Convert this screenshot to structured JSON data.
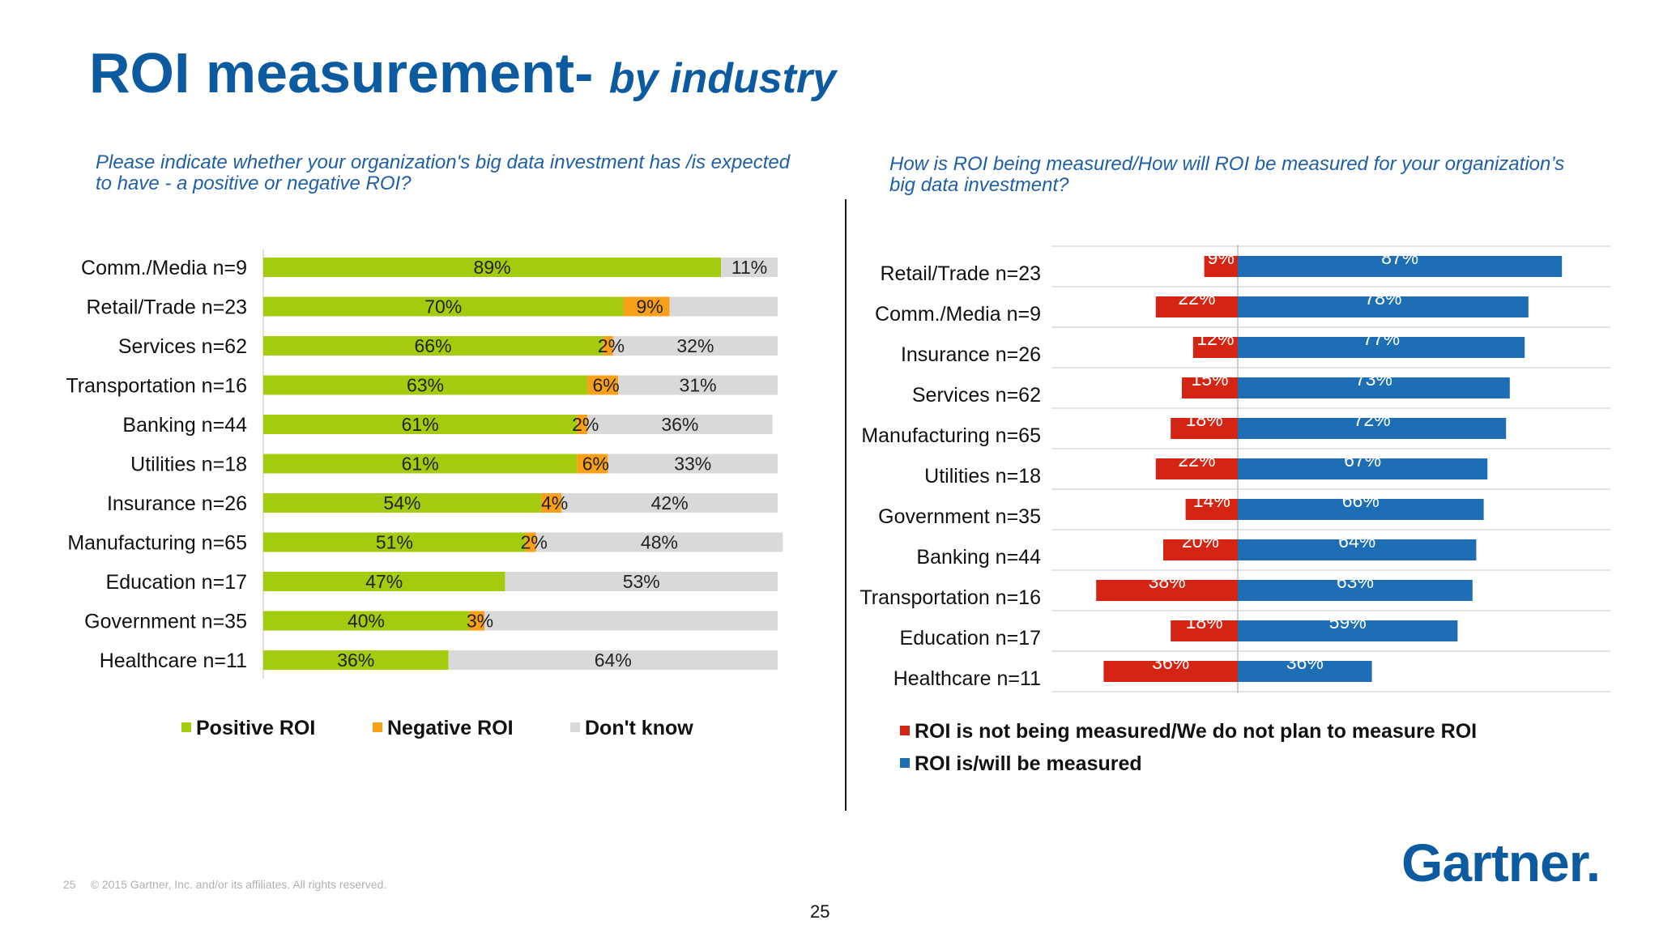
{
  "slide": {
    "title": "ROI measurement-",
    "title_sub": "by industry",
    "footer_page": "25",
    "footer_copyright": "© 2015 Gartner, Inc. and/or its affiliates. All rights reserved.",
    "page_number": "25",
    "logo": "Gartner."
  },
  "left_question": "Please indicate whether your organization's big data investment has /is expected to have - a positive or negative ROI?",
  "right_question": "How is ROI being measured/How will ROI be measured for your organization’s big data investment?",
  "colors": {
    "positive": "#a4cc0f",
    "negative": "#f9a01b",
    "dont_know": "#d9d9d9",
    "not_measured": "#d42514",
    "measured": "#1e6eb5",
    "title": "#0c5aa0"
  },
  "chart_data": [
    {
      "type": "bar",
      "orientation": "horizontal",
      "stacked": true,
      "percent_scale": true,
      "categories": [
        "Comm./Media n=9",
        "Retail/Trade n=23",
        "Services n=62",
        "Transportation n=16",
        "Banking n=44",
        "Utilities n=18",
        "Insurance n=26",
        "Manufacturing n=65",
        "Education n=17",
        "Government n=35",
        "Healthcare n=11"
      ],
      "series": [
        {
          "name": "Positive ROI",
          "values": [
            89,
            70,
            66,
            63,
            61,
            61,
            54,
            51,
            47,
            40,
            36
          ],
          "labels": [
            "89%",
            "70%",
            "66%",
            "63%",
            "61%",
            "61%",
            "54%",
            "51%",
            "47%",
            "40%",
            "36%"
          ]
        },
        {
          "name": "Negative ROI",
          "values": [
            0,
            9,
            2,
            6,
            2,
            6,
            4,
            2,
            0,
            3,
            0
          ],
          "labels": [
            "",
            "9%",
            "2%",
            "6%",
            "2%",
            "6%",
            "4%",
            "2%",
            "",
            "3%",
            ""
          ]
        },
        {
          "name": "Don't know",
          "values": [
            11,
            21,
            32,
            31,
            36,
            33,
            42,
            48,
            53,
            57,
            64
          ],
          "labels": [
            "11%",
            "",
            "32%",
            "31%",
            "36%",
            "33%",
            "42%",
            "48%",
            "53%",
            "",
            "64%"
          ]
        }
      ],
      "xlim": [
        0,
        100
      ],
      "legend": "bottom"
    },
    {
      "type": "bar",
      "orientation": "horizontal",
      "diverging": true,
      "categories": [
        "Retail/Trade n=23",
        "Comm./Media n=9",
        "Insurance n=26",
        "Services n=62",
        "Manufacturing n=65",
        "Utilities n=18",
        "Government n=35",
        "Banking n=44",
        "Transportation n=16",
        "Education n=17",
        "Healthcare n=11"
      ],
      "series": [
        {
          "name": "ROI is not being measured/We do not plan to measure ROI",
          "values": [
            9,
            22,
            12,
            15,
            18,
            22,
            14,
            20,
            38,
            18,
            36
          ],
          "labels": [
            "9%",
            "22%",
            "12%",
            "15%",
            "18%",
            "22%",
            "14%",
            "20%",
            "38%",
            "18%",
            "36%"
          ]
        },
        {
          "name": "ROI is/will be measured",
          "values": [
            87,
            78,
            77,
            73,
            72,
            67,
            66,
            64,
            63,
            59,
            36
          ],
          "labels": [
            "87%",
            "78%",
            "77%",
            "73%",
            "72%",
            "67%",
            "66%",
            "64%",
            "63%",
            "59%",
            "36%"
          ]
        }
      ],
      "legend": "bottom-left"
    }
  ]
}
